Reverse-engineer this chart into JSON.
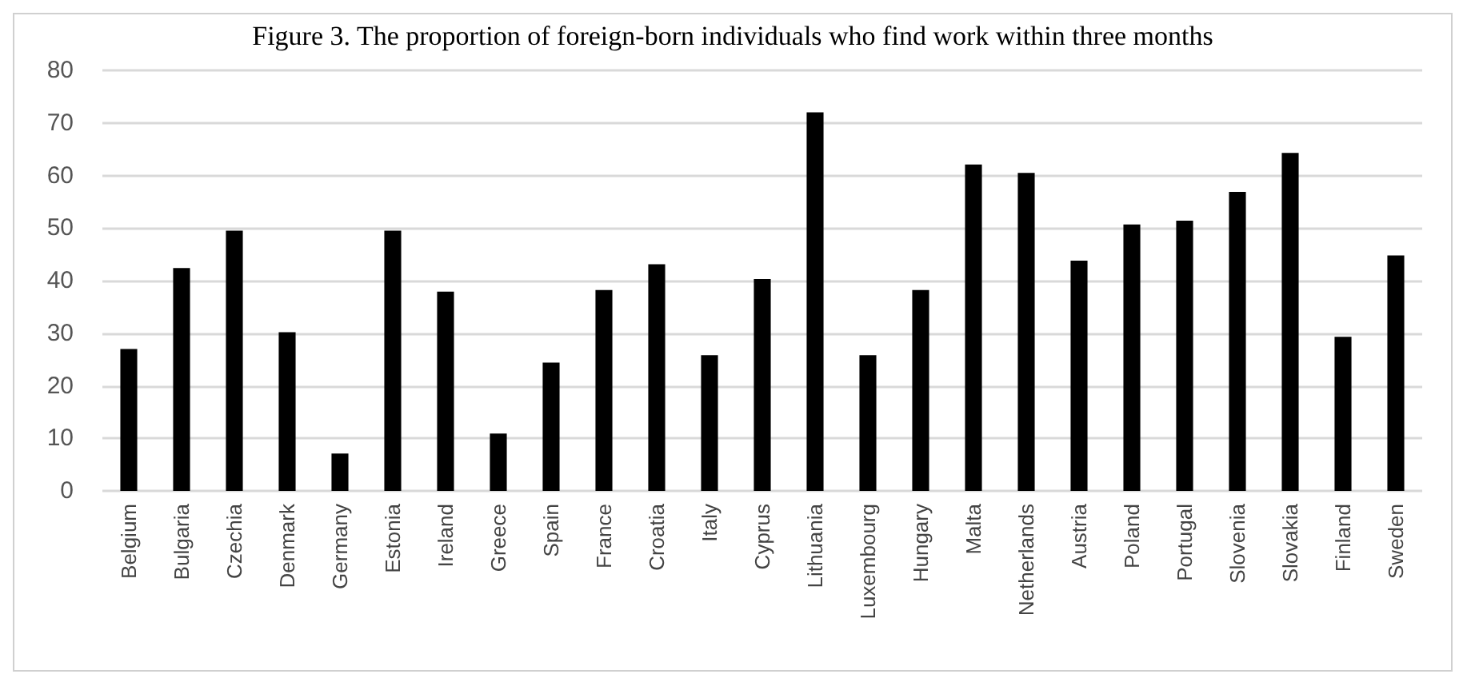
{
  "chart_data": {
    "type": "bar",
    "title": "Figure 3. The proportion of foreign-born individuals who find work within three months",
    "categories": [
      "Belgium",
      "Bulgaria",
      "Czechia",
      "Denmark",
      "Germany",
      "Estonia",
      "Ireland",
      "Greece",
      "Spain",
      "France",
      "Croatia",
      "Italy",
      "Cyprus",
      "Lithuania",
      "Luxembourg",
      "Hungary",
      "Malta",
      "Netherlands",
      "Austria",
      "Poland",
      "Portugal",
      "Slovenia",
      "Slovakia",
      "Finland",
      "Sweden"
    ],
    "values": [
      27,
      42.4,
      49.5,
      30.2,
      7.1,
      49.5,
      37.9,
      10.9,
      24.4,
      38.2,
      43.1,
      25.8,
      40.3,
      72,
      25.8,
      38.2,
      62.1,
      60.5,
      43.8,
      50.7,
      51.4,
      56.9,
      64.3,
      29.3,
      44.8
    ],
    "color": "#000000",
    "ylim": [
      0,
      80
    ],
    "yticks": [
      0,
      10,
      20,
      30,
      40,
      50,
      60,
      70,
      80
    ],
    "grid": "y"
  }
}
